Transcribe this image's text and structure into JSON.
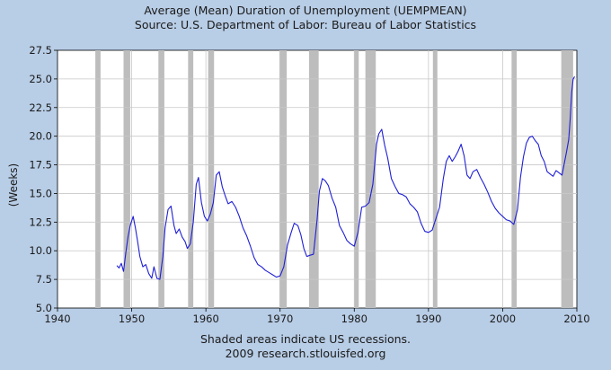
{
  "chart_data": {
    "type": "line",
    "title": "Average (Mean) Duration of Unemployment (UEMPMEAN)",
    "subtitle": "Source: U.S. Department of Labor: Bureau of Labor Statistics",
    "ylabel": "(Weeks)",
    "xlabel": "",
    "xlim": [
      1940,
      2010
    ],
    "ylim": [
      5.0,
      27.5
    ],
    "x_ticks": [
      1940,
      1950,
      1960,
      1970,
      1980,
      1990,
      2000,
      2010
    ],
    "y_ticks": [
      5.0,
      7.5,
      10.0,
      12.5,
      15.0,
      17.5,
      20.0,
      22.5,
      25.0,
      27.5
    ],
    "grid": true,
    "line_color": "#1f1fd6",
    "recession_color": "#bdbdbd",
    "recessions": [
      [
        1945.1,
        1945.8
      ],
      [
        1948.9,
        1949.8
      ],
      [
        1953.6,
        1954.4
      ],
      [
        1957.6,
        1958.3
      ],
      [
        1960.3,
        1961.1
      ],
      [
        1969.9,
        1970.9
      ],
      [
        1973.9,
        1975.2
      ],
      [
        1980.0,
        1980.6
      ],
      [
        1981.5,
        1982.9
      ],
      [
        1990.6,
        1991.2
      ],
      [
        2001.2,
        2001.9
      ],
      [
        2007.9,
        2009.5
      ]
    ],
    "series": [
      {
        "values": [
          [
            1948.0,
            8.7
          ],
          [
            1948.3,
            8.5
          ],
          [
            1948.6,
            8.9
          ],
          [
            1948.9,
            8.2
          ],
          [
            1949.2,
            9.8
          ],
          [
            1949.5,
            11.2
          ],
          [
            1949.8,
            12.2
          ],
          [
            1950.2,
            13.0
          ],
          [
            1950.5,
            12.0
          ],
          [
            1950.8,
            10.8
          ],
          [
            1951.1,
            9.5
          ],
          [
            1951.5,
            8.6
          ],
          [
            1951.9,
            8.8
          ],
          [
            1952.3,
            8.0
          ],
          [
            1952.7,
            7.6
          ],
          [
            1953.0,
            8.6
          ],
          [
            1953.4,
            7.6
          ],
          [
            1953.8,
            7.5
          ],
          [
            1954.2,
            9.5
          ],
          [
            1954.5,
            12.0
          ],
          [
            1954.9,
            13.6
          ],
          [
            1955.3,
            13.9
          ],
          [
            1955.7,
            12.2
          ],
          [
            1956.0,
            11.5
          ],
          [
            1956.4,
            11.9
          ],
          [
            1956.8,
            11.2
          ],
          [
            1957.2,
            10.8
          ],
          [
            1957.5,
            10.2
          ],
          [
            1957.9,
            10.6
          ],
          [
            1958.3,
            12.5
          ],
          [
            1958.7,
            15.8
          ],
          [
            1959.0,
            16.4
          ],
          [
            1959.4,
            14.2
          ],
          [
            1959.8,
            13.0
          ],
          [
            1960.2,
            12.6
          ],
          [
            1960.6,
            13.2
          ],
          [
            1961.0,
            14.2
          ],
          [
            1961.4,
            16.6
          ],
          [
            1961.8,
            16.9
          ],
          [
            1962.2,
            15.6
          ],
          [
            1962.6,
            14.8
          ],
          [
            1963.0,
            14.1
          ],
          [
            1963.5,
            14.3
          ],
          [
            1964.0,
            13.8
          ],
          [
            1964.5,
            13.0
          ],
          [
            1965.0,
            12.0
          ],
          [
            1965.5,
            11.3
          ],
          [
            1966.0,
            10.4
          ],
          [
            1966.5,
            9.4
          ],
          [
            1967.0,
            8.8
          ],
          [
            1967.5,
            8.6
          ],
          [
            1968.0,
            8.3
          ],
          [
            1968.5,
            8.1
          ],
          [
            1969.0,
            7.9
          ],
          [
            1969.5,
            7.7
          ],
          [
            1970.0,
            7.8
          ],
          [
            1970.5,
            8.6
          ],
          [
            1971.0,
            10.5
          ],
          [
            1971.5,
            11.6
          ],
          [
            1971.9,
            12.4
          ],
          [
            1972.4,
            12.2
          ],
          [
            1972.8,
            11.4
          ],
          [
            1973.2,
            10.2
          ],
          [
            1973.6,
            9.5
          ],
          [
            1974.0,
            9.6
          ],
          [
            1974.5,
            9.7
          ],
          [
            1975.0,
            12.8
          ],
          [
            1975.3,
            15.2
          ],
          [
            1975.7,
            16.3
          ],
          [
            1976.1,
            16.1
          ],
          [
            1976.5,
            15.7
          ],
          [
            1977.0,
            14.6
          ],
          [
            1977.5,
            13.8
          ],
          [
            1978.0,
            12.2
          ],
          [
            1978.5,
            11.6
          ],
          [
            1979.0,
            10.9
          ],
          [
            1979.5,
            10.6
          ],
          [
            1980.0,
            10.4
          ],
          [
            1980.5,
            11.6
          ],
          [
            1981.0,
            13.8
          ],
          [
            1981.5,
            13.9
          ],
          [
            1982.0,
            14.2
          ],
          [
            1982.5,
            15.8
          ],
          [
            1983.0,
            19.3
          ],
          [
            1983.3,
            20.2
          ],
          [
            1983.7,
            20.6
          ],
          [
            1984.1,
            19.2
          ],
          [
            1984.5,
            18.1
          ],
          [
            1985.0,
            16.3
          ],
          [
            1985.5,
            15.6
          ],
          [
            1986.0,
            15.0
          ],
          [
            1986.5,
            14.9
          ],
          [
            1987.0,
            14.7
          ],
          [
            1987.5,
            14.1
          ],
          [
            1988.0,
            13.8
          ],
          [
            1988.5,
            13.4
          ],
          [
            1989.0,
            12.4
          ],
          [
            1989.5,
            11.7
          ],
          [
            1990.0,
            11.6
          ],
          [
            1990.5,
            11.8
          ],
          [
            1991.0,
            12.8
          ],
          [
            1991.5,
            13.8
          ],
          [
            1992.0,
            16.3
          ],
          [
            1992.4,
            17.8
          ],
          [
            1992.8,
            18.3
          ],
          [
            1993.2,
            17.8
          ],
          [
            1993.6,
            18.2
          ],
          [
            1994.0,
            18.7
          ],
          [
            1994.4,
            19.3
          ],
          [
            1994.8,
            18.3
          ],
          [
            1995.2,
            16.6
          ],
          [
            1995.6,
            16.3
          ],
          [
            1996.0,
            16.9
          ],
          [
            1996.5,
            17.1
          ],
          [
            1997.0,
            16.4
          ],
          [
            1997.5,
            15.8
          ],
          [
            1998.0,
            15.1
          ],
          [
            1998.5,
            14.3
          ],
          [
            1999.0,
            13.7
          ],
          [
            1999.5,
            13.3
          ],
          [
            2000.0,
            13.0
          ],
          [
            2000.5,
            12.7
          ],
          [
            2001.0,
            12.6
          ],
          [
            2001.5,
            12.3
          ],
          [
            2002.0,
            13.6
          ],
          [
            2002.4,
            16.4
          ],
          [
            2002.8,
            18.2
          ],
          [
            2003.2,
            19.4
          ],
          [
            2003.6,
            19.9
          ],
          [
            2004.0,
            20.0
          ],
          [
            2004.4,
            19.6
          ],
          [
            2004.8,
            19.3
          ],
          [
            2005.2,
            18.3
          ],
          [
            2005.6,
            17.8
          ],
          [
            2006.0,
            16.9
          ],
          [
            2006.4,
            16.7
          ],
          [
            2006.8,
            16.5
          ],
          [
            2007.2,
            17.0
          ],
          [
            2007.6,
            16.8
          ],
          [
            2008.0,
            16.6
          ],
          [
            2008.3,
            17.6
          ],
          [
            2008.6,
            18.6
          ],
          [
            2008.9,
            19.7
          ],
          [
            2009.1,
            21.5
          ],
          [
            2009.3,
            23.8
          ],
          [
            2009.5,
            25.0
          ],
          [
            2009.7,
            25.2
          ]
        ]
      }
    ],
    "footer_line1": "Shaded areas indicate US recessions.",
    "footer_line2": "2009 research.stlouisfed.org"
  }
}
